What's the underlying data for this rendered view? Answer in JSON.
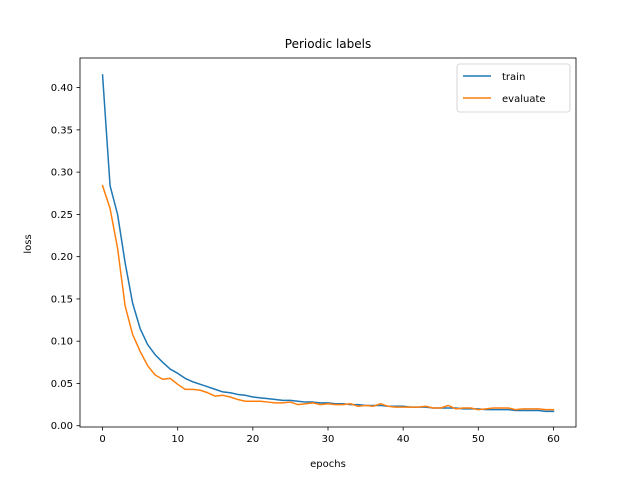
{
  "chart_data": {
    "type": "line",
    "title": "Periodic labels",
    "xlabel": "epochs",
    "ylabel": "loss",
    "xlim": [
      -3,
      63
    ],
    "ylim": [
      -0.0015,
      0.435
    ],
    "xticks": [
      0,
      10,
      20,
      30,
      40,
      50,
      60
    ],
    "yticks": [
      0.0,
      0.05,
      0.1,
      0.15,
      0.2,
      0.25,
      0.3,
      0.35,
      0.4
    ],
    "ytick_labels": [
      "0.00",
      "0.05",
      "0.10",
      "0.15",
      "0.20",
      "0.25",
      "0.30",
      "0.35",
      "0.40"
    ],
    "grid": false,
    "legend_position": "upper right",
    "series": [
      {
        "name": "train",
        "color": "#1f77b4",
        "x": [
          0,
          1,
          2,
          3,
          4,
          5,
          6,
          7,
          8,
          9,
          10,
          11,
          12,
          13,
          14,
          15,
          16,
          17,
          18,
          19,
          20,
          21,
          22,
          23,
          24,
          25,
          26,
          27,
          28,
          29,
          30,
          31,
          32,
          33,
          34,
          35,
          36,
          37,
          38,
          39,
          40,
          41,
          42,
          43,
          44,
          45,
          46,
          47,
          48,
          49,
          50,
          51,
          52,
          53,
          54,
          55,
          56,
          57,
          58,
          59,
          60
        ],
        "values": [
          0.415,
          0.284,
          0.25,
          0.193,
          0.145,
          0.115,
          0.096,
          0.084,
          0.075,
          0.067,
          0.062,
          0.056,
          0.052,
          0.049,
          0.046,
          0.043,
          0.04,
          0.039,
          0.037,
          0.036,
          0.034,
          0.033,
          0.032,
          0.031,
          0.03,
          0.03,
          0.029,
          0.028,
          0.028,
          0.027,
          0.027,
          0.026,
          0.026,
          0.025,
          0.025,
          0.024,
          0.024,
          0.024,
          0.023,
          0.023,
          0.023,
          0.022,
          0.022,
          0.022,
          0.021,
          0.021,
          0.021,
          0.021,
          0.02,
          0.02,
          0.02,
          0.019,
          0.019,
          0.019,
          0.019,
          0.018,
          0.018,
          0.018,
          0.018,
          0.017,
          0.017
        ]
      },
      {
        "name": "evaluate",
        "color": "#ff7f0e",
        "x": [
          0,
          1,
          2,
          3,
          4,
          5,
          6,
          7,
          8,
          9,
          10,
          11,
          12,
          13,
          14,
          15,
          16,
          17,
          18,
          19,
          20,
          21,
          22,
          23,
          24,
          25,
          26,
          27,
          28,
          29,
          30,
          31,
          32,
          33,
          34,
          35,
          36,
          37,
          38,
          39,
          40,
          41,
          42,
          43,
          44,
          45,
          46,
          47,
          48,
          49,
          50,
          51,
          52,
          53,
          54,
          55,
          56,
          57,
          58,
          59,
          60
        ],
        "values": [
          0.284,
          0.257,
          0.21,
          0.142,
          0.108,
          0.088,
          0.071,
          0.06,
          0.055,
          0.056,
          0.049,
          0.043,
          0.043,
          0.042,
          0.039,
          0.035,
          0.036,
          0.034,
          0.031,
          0.029,
          0.029,
          0.029,
          0.028,
          0.027,
          0.027,
          0.028,
          0.025,
          0.026,
          0.027,
          0.025,
          0.026,
          0.025,
          0.025,
          0.026,
          0.023,
          0.024,
          0.023,
          0.026,
          0.023,
          0.022,
          0.022,
          0.022,
          0.022,
          0.023,
          0.021,
          0.021,
          0.024,
          0.02,
          0.021,
          0.021,
          0.019,
          0.02,
          0.021,
          0.021,
          0.021,
          0.019,
          0.02,
          0.02,
          0.02,
          0.019,
          0.019
        ]
      }
    ]
  }
}
